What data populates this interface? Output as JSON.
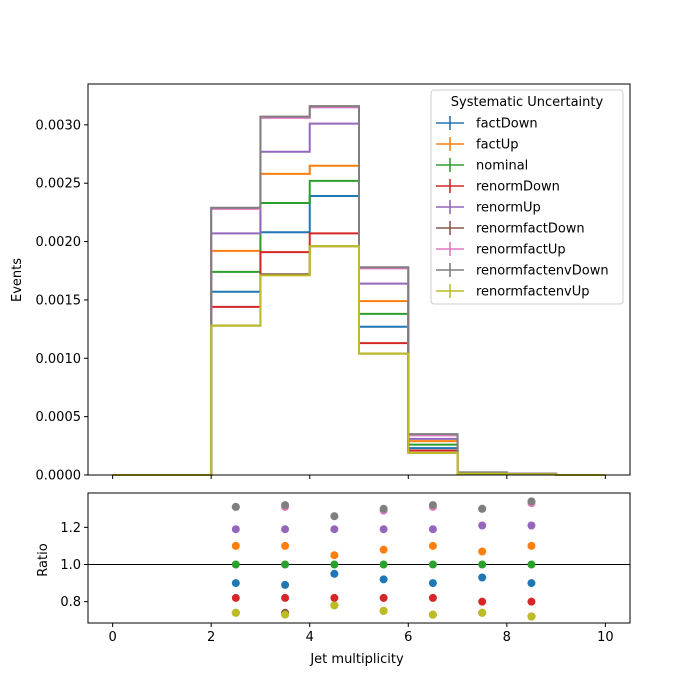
{
  "chart_data": [
    {
      "type": "line",
      "style": "step-histogram",
      "ylabel": "Events",
      "xlim": [
        -0.5,
        10.5
      ],
      "ylim": [
        0,
        0.00335
      ],
      "bin_edges": [
        0,
        1,
        2,
        3,
        4,
        5,
        6,
        7,
        8,
        9,
        10
      ],
      "yticks": [
        0,
        0.0005,
        0.001,
        0.0015,
        0.002,
        0.0025,
        0.003
      ],
      "ytick_labels": [
        "0.0000",
        "0.0005",
        "0.0010",
        "0.0015",
        "0.0020",
        "0.0025",
        "0.0030"
      ],
      "grid": false,
      "legend_title": "Systematic Uncertainty",
      "legend_loc": "upper right",
      "series": [
        {
          "name": "factDown",
          "color": "#1f77b4",
          "values": [
            0,
            0,
            0.00157,
            0.00208,
            0.00239,
            0.00127,
            0.00023,
            1.5e-05,
            8e-06,
            0
          ]
        },
        {
          "name": "factUp",
          "color": "#ff7f0e",
          "values": [
            0,
            0,
            0.00192,
            0.00258,
            0.00265,
            0.00149,
            0.00029,
            1.8e-05,
            1e-05,
            0
          ]
        },
        {
          "name": "nominal",
          "color": "#2ca02c",
          "values": [
            0,
            0,
            0.00174,
            0.00233,
            0.00252,
            0.00138,
            0.00026,
            1.7e-05,
            9e-06,
            0
          ]
        },
        {
          "name": "renormDown",
          "color": "#d62728",
          "values": [
            0,
            0,
            0.00144,
            0.00191,
            0.00207,
            0.00113,
            0.00021,
            1.3e-05,
            7e-06,
            0
          ]
        },
        {
          "name": "renormUp",
          "color": "#9467bd",
          "values": [
            0,
            0,
            0.00207,
            0.00277,
            0.00301,
            0.00164,
            0.00031,
            2.1e-05,
            1.1e-05,
            0
          ]
        },
        {
          "name": "renormfactDown",
          "color": "#8c564b",
          "values": [
            0,
            0,
            0.00128,
            0.00172,
            0.00196,
            0.00104,
            0.00019,
            1.2e-05,
            6e-06,
            0
          ]
        },
        {
          "name": "renormfactUp",
          "color": "#e377c2",
          "values": [
            0,
            0,
            0.00228,
            0.00306,
            0.00315,
            0.00177,
            0.00034,
            2.2e-05,
            1.2e-05,
            0
          ]
        },
        {
          "name": "renormfactenvDown",
          "color": "#7f7f7f",
          "values": [
            0,
            0,
            0.00229,
            0.00307,
            0.00316,
            0.00178,
            0.00035,
            2.2e-05,
            1.2e-05,
            0
          ]
        },
        {
          "name": "renormfactenvUp",
          "color": "#bcbd22",
          "values": [
            0,
            0,
            0.00128,
            0.00171,
            0.00196,
            0.00104,
            0.00019,
            1.2e-05,
            6e-06,
            0
          ]
        }
      ]
    },
    {
      "type": "scatter",
      "xlabel": "Jet multiplicity",
      "ylabel": "Ratio",
      "xlim": [
        -0.5,
        10.5
      ],
      "ylim": [
        0.685,
        1.385
      ],
      "xticks": [
        0,
        2,
        4,
        6,
        8,
        10
      ],
      "xtick_labels": [
        "0",
        "2",
        "4",
        "6",
        "8",
        "10"
      ],
      "yticks": [
        0.8,
        1.0,
        1.2
      ],
      "ytick_labels": [
        "0.8",
        "1.0",
        "1.2"
      ],
      "reference_line": 1.0,
      "x": [
        2.5,
        3.5,
        4.5,
        5.5,
        6.5,
        7.5,
        8.5
      ],
      "series": [
        {
          "name": "factDown",
          "color": "#1f77b4",
          "values": [
            0.9,
            0.89,
            0.95,
            0.92,
            0.9,
            0.93,
            0.9
          ]
        },
        {
          "name": "factUp",
          "color": "#ff7f0e",
          "values": [
            1.1,
            1.1,
            1.05,
            1.08,
            1.1,
            1.07,
            1.1
          ]
        },
        {
          "name": "nominal",
          "color": "#2ca02c",
          "values": [
            1.0,
            1.0,
            1.0,
            1.0,
            1.0,
            1.0,
            1.0
          ]
        },
        {
          "name": "renormDown",
          "color": "#d62728",
          "values": [
            0.82,
            0.82,
            0.82,
            0.82,
            0.82,
            0.8,
            0.8
          ]
        },
        {
          "name": "renormUp",
          "color": "#9467bd",
          "values": [
            1.19,
            1.19,
            1.19,
            1.19,
            1.19,
            1.21,
            1.21
          ]
        },
        {
          "name": "renormfactDown",
          "color": "#8c564b",
          "values": [
            0.74,
            0.74,
            0.78,
            0.75,
            0.73,
            0.74,
            0.72
          ]
        },
        {
          "name": "renormfactUp",
          "color": "#e377c2",
          "values": [
            1.31,
            1.31,
            1.26,
            1.29,
            1.31,
            1.3,
            1.33
          ]
        },
        {
          "name": "renormfactenvDown",
          "color": "#7f7f7f",
          "values": [
            1.31,
            1.32,
            1.26,
            1.3,
            1.32,
            1.3,
            1.34
          ]
        },
        {
          "name": "renormfactenvUp",
          "color": "#bcbd22",
          "values": [
            0.74,
            0.73,
            0.78,
            0.75,
            0.73,
            0.74,
            0.72
          ]
        }
      ]
    }
  ]
}
